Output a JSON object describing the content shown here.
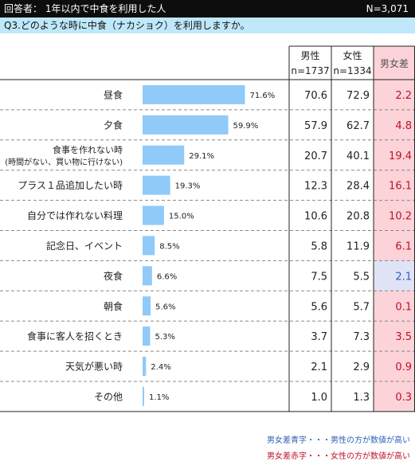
{
  "header": {
    "respondents": "回答者： 1年以内で中食を利用した人",
    "n_total": "N=3,071",
    "question": "Q3.どのような時に中食（ナカショク）を利用しますか。"
  },
  "table": {
    "col_male": "男性",
    "col_female": "女性",
    "col_diff": "男女差",
    "n_male": "n=1737",
    "n_female": "n=1334"
  },
  "notes": {
    "blue": "男女差青字・・・男性の方が数値が高い",
    "red": "男女差赤字・・・女性の方が数値が高い"
  },
  "colors": {
    "bar": "#90caf9",
    "diff_red_bg": "#fbd3d8",
    "diff_red_text": "#c0102a",
    "diff_blue_bg": "#dfe3f5",
    "diff_blue_text": "#2c5fb8"
  },
  "chart_data": {
    "type": "bar",
    "orientation": "horizontal",
    "categories": [
      [
        "昼食"
      ],
      [
        "夕食"
      ],
      [
        "食事を作れない時",
        "(時間がない、買い物に行けない)"
      ],
      [
        "プラス１品追加したい時"
      ],
      [
        "自分では作れない料理"
      ],
      [
        "記念日、イベント"
      ],
      [
        "夜食"
      ],
      [
        "朝食"
      ],
      [
        "食事に客人を招くとき"
      ],
      [
        "天気が悪い時"
      ],
      [
        "その他"
      ]
    ],
    "values": [
      71.6,
      59.9,
      29.1,
      19.3,
      15.0,
      8.5,
      6.6,
      5.6,
      5.3,
      2.4,
      1.1
    ],
    "value_labels": [
      "71.6%",
      "59.9%",
      "29.1%",
      "19.3%",
      "15.0%",
      "8.5%",
      "6.6%",
      "5.6%",
      "5.3%",
      "2.4%",
      "1.1%"
    ],
    "xlim": [
      0,
      100
    ],
    "male": [
      "70.6",
      "57.9",
      "20.7",
      "12.3",
      "10.6",
      "5.8",
      "7.5",
      "5.6",
      "3.7",
      "2.1",
      "1.0"
    ],
    "female": [
      "72.9",
      "62.7",
      "40.1",
      "28.4",
      "20.8",
      "11.9",
      "5.5",
      "5.7",
      "7.3",
      "2.9",
      "1.3"
    ],
    "diff": [
      "2.2",
      "4.8",
      "19.4",
      "16.1",
      "10.2",
      "6.1",
      "2.1",
      "0.1",
      "3.5",
      "0.9",
      "0.3"
    ],
    "diff_higher": [
      "female",
      "female",
      "female",
      "female",
      "female",
      "female",
      "male",
      "female",
      "female",
      "female",
      "female"
    ]
  }
}
